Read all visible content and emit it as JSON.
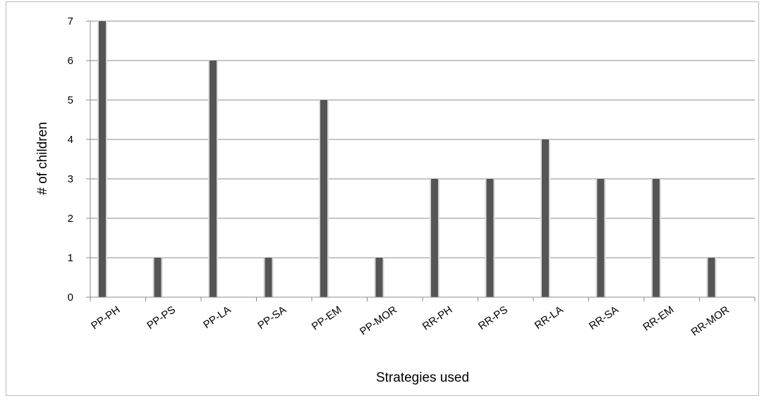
{
  "chart_data": {
    "type": "bar",
    "categories": [
      "PP-PH",
      "PP-PS",
      "PP-LA",
      "PP-SA",
      "PP-EM",
      "PP-MOR",
      "RR-PH",
      "RR-PS",
      "RR-LA",
      "RR-SA",
      "RR-EM",
      "RR-MOR"
    ],
    "values": [
      7,
      1,
      6,
      1,
      5,
      1,
      3,
      3,
      4,
      3,
      3,
      1
    ],
    "title": "",
    "xlabel": "Strategies used",
    "ylabel": "# of children",
    "ylim": [
      0,
      7
    ],
    "yticks": [
      0,
      1,
      2,
      3,
      4,
      5,
      6,
      7
    ],
    "grid": "horizontal",
    "legend": "none",
    "colors": {
      "bar": "#555555",
      "bar_highlight": "#d9d9d9",
      "grid": "#8c8c8c",
      "axis": "#8c8c8c",
      "frame": "#b9b9b9"
    }
  }
}
